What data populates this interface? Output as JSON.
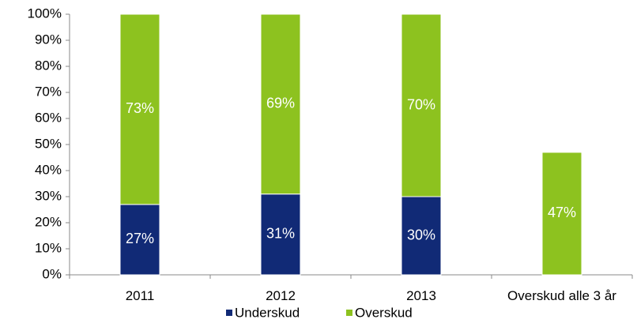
{
  "chart_data": {
    "type": "stacked_bar",
    "categories": [
      "2011",
      "2012",
      "2013",
      "Overskud alle 3 år"
    ],
    "series": [
      {
        "name": "Underskud",
        "color": "#112a76",
        "values": [
          27,
          31,
          30,
          null
        ],
        "value_labels": [
          "27%",
          "31%",
          "30%",
          null
        ]
      },
      {
        "name": "Overskud",
        "color": "#8dc21f",
        "values": [
          73,
          69,
          70,
          47
        ],
        "value_labels": [
          "73%",
          "69%",
          "70%",
          "47%"
        ]
      }
    ],
    "ylim": [
      0,
      100
    ],
    "yticks": [
      {
        "value": 0,
        "label": "0%"
      },
      {
        "value": 10,
        "label": "10%"
      },
      {
        "value": 20,
        "label": "20%"
      },
      {
        "value": 30,
        "label": "30%"
      },
      {
        "value": 40,
        "label": "40%"
      },
      {
        "value": 50,
        "label": "50%"
      },
      {
        "value": 60,
        "label": "60%"
      },
      {
        "value": 70,
        "label": "70%"
      },
      {
        "value": 80,
        "label": "80%"
      },
      {
        "value": 90,
        "label": "90%"
      },
      {
        "value": 100,
        "label": "100%"
      }
    ],
    "legend": "bottom"
  }
}
